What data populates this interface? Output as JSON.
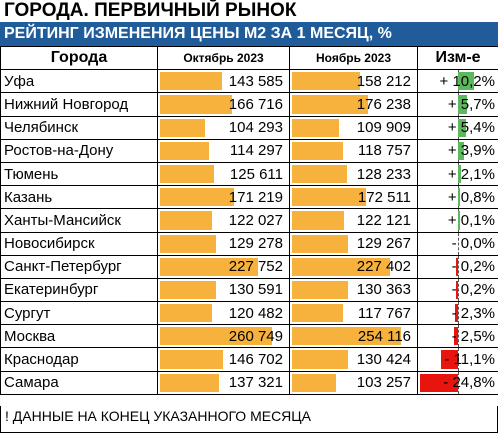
{
  "title": "ГОРОДА. ПЕРВИЧНЫЙ РЫНОК",
  "subtitle": "РЕЙТИНГ ИЗМЕНЕНИЯ ЦЕНЫ М2 ЗА 1 МЕСЯЦ, %",
  "headers": {
    "city": "Города",
    "oct": "Октябрь 2023",
    "nov": "Ноябрь 2023",
    "change": "Изм-е"
  },
  "colors": {
    "header_bg": "#1f5c99",
    "value_bar": "#f6b23c",
    "positive_bar": "#5cb85c",
    "negative_bar": "#e8150f"
  },
  "rows": [
    {
      "city": "Уфа",
      "oct": "143 585",
      "nov": "158 212",
      "change": "+ 10,2%",
      "oct_value": 143585,
      "nov_value": 158212,
      "change_value": 10.2
    },
    {
      "city": "Нижний Новгород",
      "oct": "166 716",
      "nov": "176 238",
      "change": "+ 5,7%",
      "oct_value": 166716,
      "nov_value": 176238,
      "change_value": 5.7
    },
    {
      "city": "Челябинск",
      "oct": "104 293",
      "nov": "109 909",
      "change": "+ 5,4%",
      "oct_value": 104293,
      "nov_value": 109909,
      "change_value": 5.4
    },
    {
      "city": "Ростов-на-Дону",
      "oct": "114 297",
      "nov": "118 757",
      "change": "+ 3,9%",
      "oct_value": 114297,
      "nov_value": 118757,
      "change_value": 3.9
    },
    {
      "city": "Тюмень",
      "oct": "125 611",
      "nov": "128 233",
      "change": "+ 2,1%",
      "oct_value": 125611,
      "nov_value": 128233,
      "change_value": 2.1
    },
    {
      "city": "Казань",
      "oct": "171 219",
      "nov": "172 511",
      "change": "+ 0,8%",
      "oct_value": 171219,
      "nov_value": 172511,
      "change_value": 0.8
    },
    {
      "city": "Ханты-Мансийск",
      "oct": "122 027",
      "nov": "122 121",
      "change": "+ 0,1%",
      "oct_value": 122027,
      "nov_value": 122121,
      "change_value": 0.1
    },
    {
      "city": "Новосибирск",
      "oct": "129 278",
      "nov": "129 267",
      "change": "- 0,0%",
      "oct_value": 129278,
      "nov_value": 129267,
      "change_value": -0.0
    },
    {
      "city": "Санкт-Петербург",
      "oct": "227 752",
      "nov": "227 402",
      "change": "- 0,2%",
      "oct_value": 227752,
      "nov_value": 227402,
      "change_value": -0.2
    },
    {
      "city": "Екатеринбург",
      "oct": "130 591",
      "nov": "130 363",
      "change": "- 0,2%",
      "oct_value": 130591,
      "nov_value": 130363,
      "change_value": -0.2
    },
    {
      "city": "Сургут",
      "oct": "120 482",
      "nov": "117 767",
      "change": "- 2,3%",
      "oct_value": 120482,
      "nov_value": 117767,
      "change_value": -2.3
    },
    {
      "city": "Москва",
      "oct": "260 749",
      "nov": "254 116",
      "change": "- 2,5%",
      "oct_value": 260749,
      "nov_value": 254116,
      "change_value": -2.5
    },
    {
      "city": "Краснодар",
      "oct": "146 702",
      "nov": "130 424",
      "change": "- 11,1%",
      "oct_value": 146702,
      "nov_value": 130424,
      "change_value": -11.1
    },
    {
      "city": "Самара",
      "oct": "137 321",
      "nov": "103 257",
      "change": "- 24,8%",
      "oct_value": 137321,
      "nov_value": 103257,
      "change_value": -24.8
    }
  ],
  "footnote": "! ДАННЫЕ НА КОНЕЦ УКАЗАННОГО МЕСЯЦА"
}
